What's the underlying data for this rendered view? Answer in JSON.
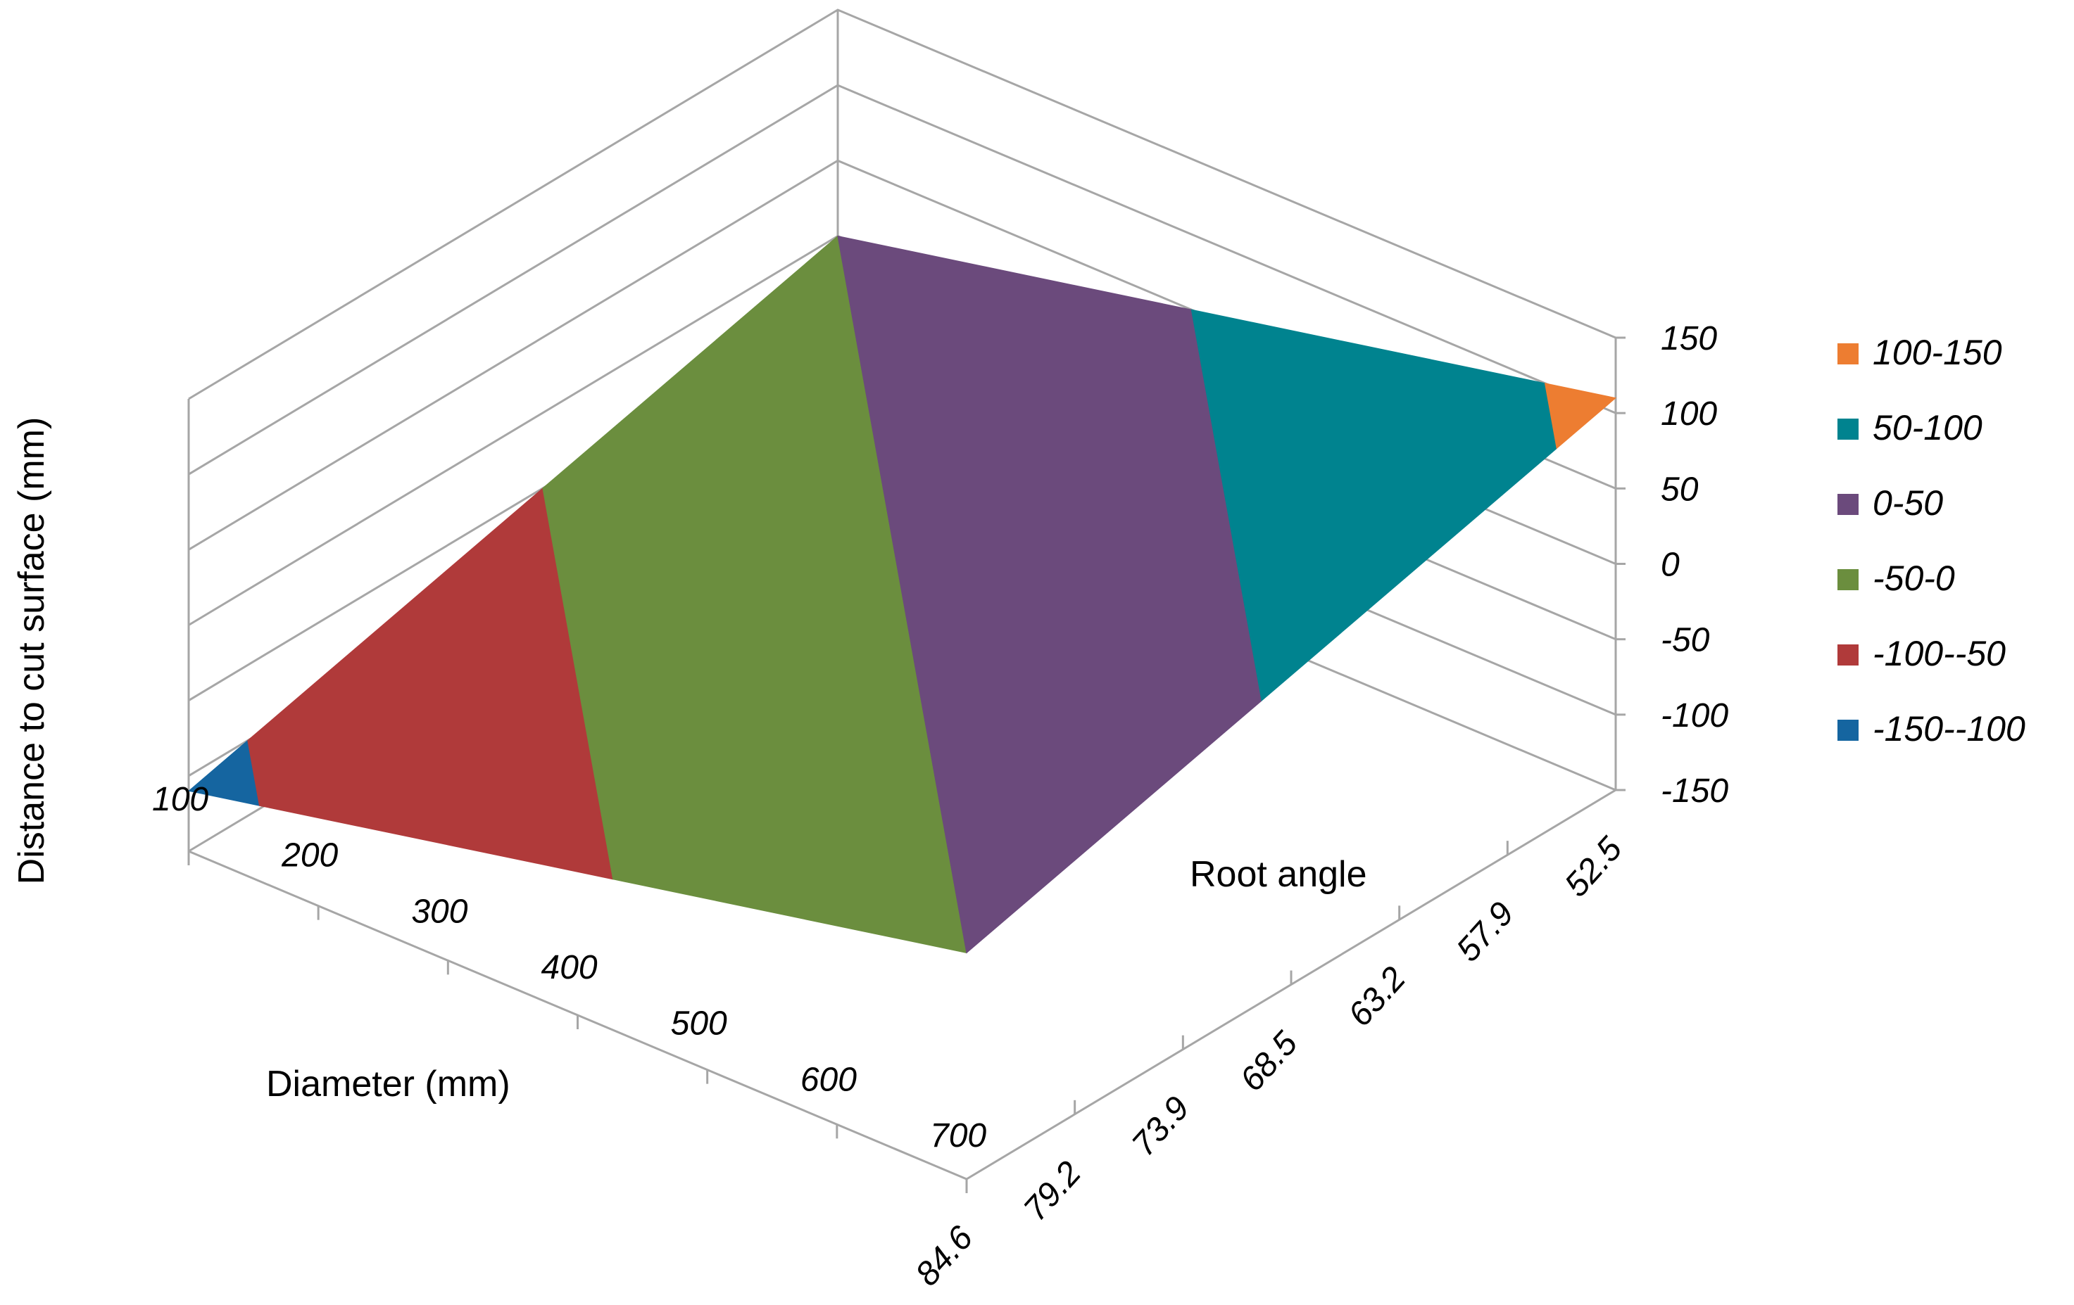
{
  "chart_data": {
    "type": "surface",
    "title": "",
    "zlabel": "Distance to cut surface (mm)",
    "xlabel": "Diameter (mm)",
    "ylabel": "Root angle",
    "x_ticks": [
      "100",
      "200",
      "300",
      "400",
      "500",
      "600",
      "700"
    ],
    "y_ticks": [
      "84.6",
      "79.2",
      "73.9",
      "68.5",
      "63.2",
      "57.9",
      "52.5"
    ],
    "z_ticks": [
      "150",
      "100",
      "50",
      "0",
      "-50",
      "-100",
      "-150"
    ],
    "zlim": [
      -150,
      150
    ],
    "legend_position": "right",
    "bands": [
      {
        "label": "100-150",
        "color": "#ED7D31"
      },
      {
        "label": "50-100",
        "color": "#00838F"
      },
      {
        "label": "0-50",
        "color": "#6B4A7C"
      },
      {
        "label": "-50-0",
        "color": "#6B8E3E"
      },
      {
        "label": "-100--50",
        "color": "#B03A3A"
      },
      {
        "label": "-150--100",
        "color": "#1565A0"
      }
    ],
    "corner_values": [
      {
        "diameter": 100,
        "root_angle": 84.6,
        "z": -110
      },
      {
        "diameter": 700,
        "root_angle": 84.6,
        "z": 0
      },
      {
        "diameter": 100,
        "root_angle": 52.5,
        "z": 0
      },
      {
        "diameter": 700,
        "root_angle": 52.5,
        "z": 110
      }
    ],
    "grid": true
  }
}
